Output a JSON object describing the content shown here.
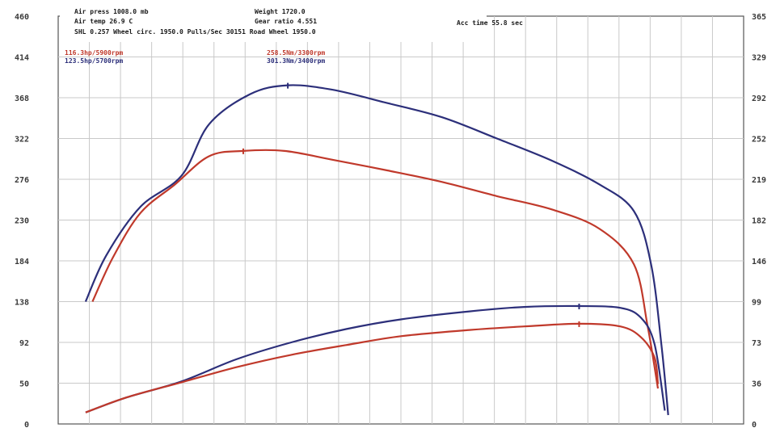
{
  "header": {
    "line1_left": "Air press  1008.0 mb",
    "line2_left": "Air temp  26.9 C",
    "line3": "SHL   0.257   Wheel circ. 1950.0   Pulls/Sec   30151   Road Wheel 1950.0",
    "line1_mid": "Weight  1720.0",
    "line2_mid": "Gear ratio  4.551",
    "acc_time": "Acc time  55.8 sec"
  },
  "legend": [
    {
      "text": "116.3hp/5900rpm",
      "color": "#c0392b"
    },
    {
      "text": "123.5hp/5700rpm",
      "color": "#2c2f7a"
    },
    {
      "text": "258.5Nm/3300rpm",
      "color": "#c0392b"
    },
    {
      "text": "301.3Nm/3400rpm",
      "color": "#2c2f7a"
    }
  ],
  "chart_data": {
    "type": "line",
    "y_left": {
      "ticks": [
        "0",
        "50",
        "92",
        "138",
        "184",
        "230",
        "276",
        "322",
        "368",
        "414",
        "460"
      ],
      "ylim": [
        0,
        460
      ]
    },
    "y_right": {
      "ticks": [
        "0",
        "36",
        "73",
        "99",
        "146",
        "182",
        "219",
        "252",
        "292",
        "329",
        "365"
      ],
      "ylim": [
        0,
        365
      ]
    },
    "grid": true,
    "colors": {
      "red": "#c0392b",
      "blue": "#2c2f7a",
      "grid": "#c9c9c9"
    },
    "series": [
      {
        "color": "#2c2f7a",
        "points": [
          [
            0.04,
            138
          ],
          [
            0.07,
            190
          ],
          [
            0.12,
            245
          ],
          [
            0.18,
            280
          ],
          [
            0.22,
            338
          ],
          [
            0.28,
            372
          ],
          [
            0.335,
            382
          ],
          [
            0.4,
            377
          ],
          [
            0.48,
            362
          ],
          [
            0.56,
            346
          ],
          [
            0.64,
            322
          ],
          [
            0.72,
            297
          ],
          [
            0.79,
            270
          ],
          [
            0.84,
            240
          ],
          [
            0.865,
            180
          ],
          [
            0.88,
            90
          ],
          [
            0.89,
            10
          ]
        ]
      },
      {
        "color": "#c0392b",
        "points": [
          [
            0.05,
            138
          ],
          [
            0.08,
            188
          ],
          [
            0.12,
            238
          ],
          [
            0.17,
            270
          ],
          [
            0.22,
            302
          ],
          [
            0.27,
            308
          ],
          [
            0.33,
            308
          ],
          [
            0.4,
            298
          ],
          [
            0.48,
            286
          ],
          [
            0.56,
            273
          ],
          [
            0.64,
            257
          ],
          [
            0.72,
            242
          ],
          [
            0.79,
            220
          ],
          [
            0.84,
            180
          ],
          [
            0.86,
            110
          ],
          [
            0.875,
            40
          ]
        ]
      },
      {
        "color": "#2c2f7a",
        "points": [
          [
            0.04,
            13
          ],
          [
            0.1,
            30
          ],
          [
            0.18,
            48
          ],
          [
            0.26,
            73
          ],
          [
            0.34,
            92
          ],
          [
            0.42,
            107
          ],
          [
            0.5,
            118
          ],
          [
            0.6,
            127
          ],
          [
            0.68,
            132
          ],
          [
            0.76,
            133
          ],
          [
            0.82,
            131
          ],
          [
            0.85,
            120
          ],
          [
            0.87,
            90
          ],
          [
            0.885,
            15
          ]
        ]
      },
      {
        "color": "#c0392b",
        "points": [
          [
            0.04,
            13
          ],
          [
            0.1,
            30
          ],
          [
            0.18,
            47
          ],
          [
            0.26,
            64
          ],
          [
            0.34,
            78
          ],
          [
            0.42,
            89
          ],
          [
            0.5,
            99
          ],
          [
            0.6,
            106
          ],
          [
            0.68,
            110
          ],
          [
            0.76,
            113
          ],
          [
            0.82,
            110
          ],
          [
            0.85,
            98
          ],
          [
            0.87,
            75
          ],
          [
            0.875,
            45
          ]
        ]
      }
    ]
  }
}
